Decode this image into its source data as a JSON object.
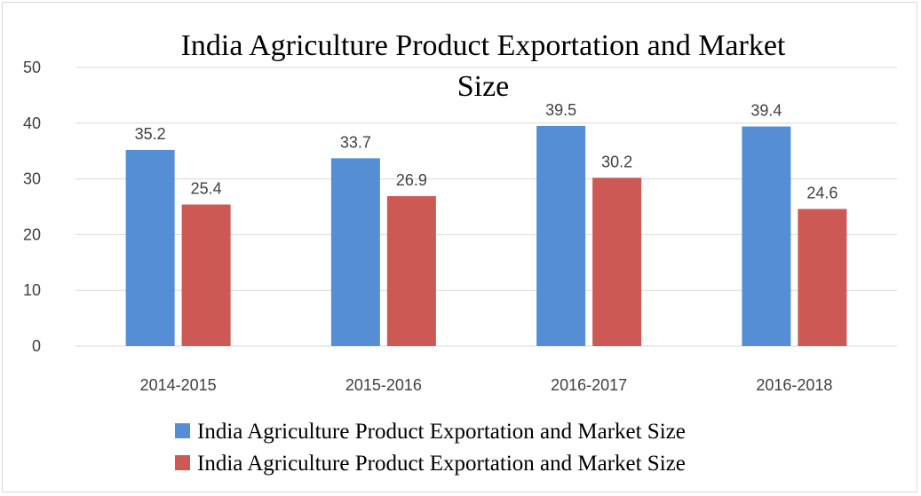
{
  "chart_data": {
    "type": "bar",
    "title": "India Agriculture Product Exportation and Market Size",
    "title_lines": [
      "India Agriculture Product Exportation and Market",
      "Size"
    ],
    "categories": [
      "2014-2015",
      "2015-2016",
      "2016-2017",
      "2016-2018"
    ],
    "series": [
      {
        "name": "India Agriculture Product Exportation and Market Size",
        "color": "#558ed5",
        "values": [
          35.2,
          33.7,
          39.5,
          39.4
        ],
        "labels": [
          "35.2",
          "33.7",
          "39.5",
          "39.4"
        ]
      },
      {
        "name": "India Agriculture Product Exportation and Market Size",
        "color": "#cd5955",
        "values": [
          25.4,
          26.9,
          30.2,
          24.6
        ],
        "labels": [
          "25.4",
          "26.9",
          "30.2",
          "24.6"
        ]
      }
    ],
    "yticks": [
      "0",
      "10",
      "20",
      "30",
      "40",
      "50"
    ],
    "ylim": [
      0,
      50
    ],
    "grid": true,
    "legend_position": "bottom",
    "xlabel": "",
    "ylabel": ""
  }
}
